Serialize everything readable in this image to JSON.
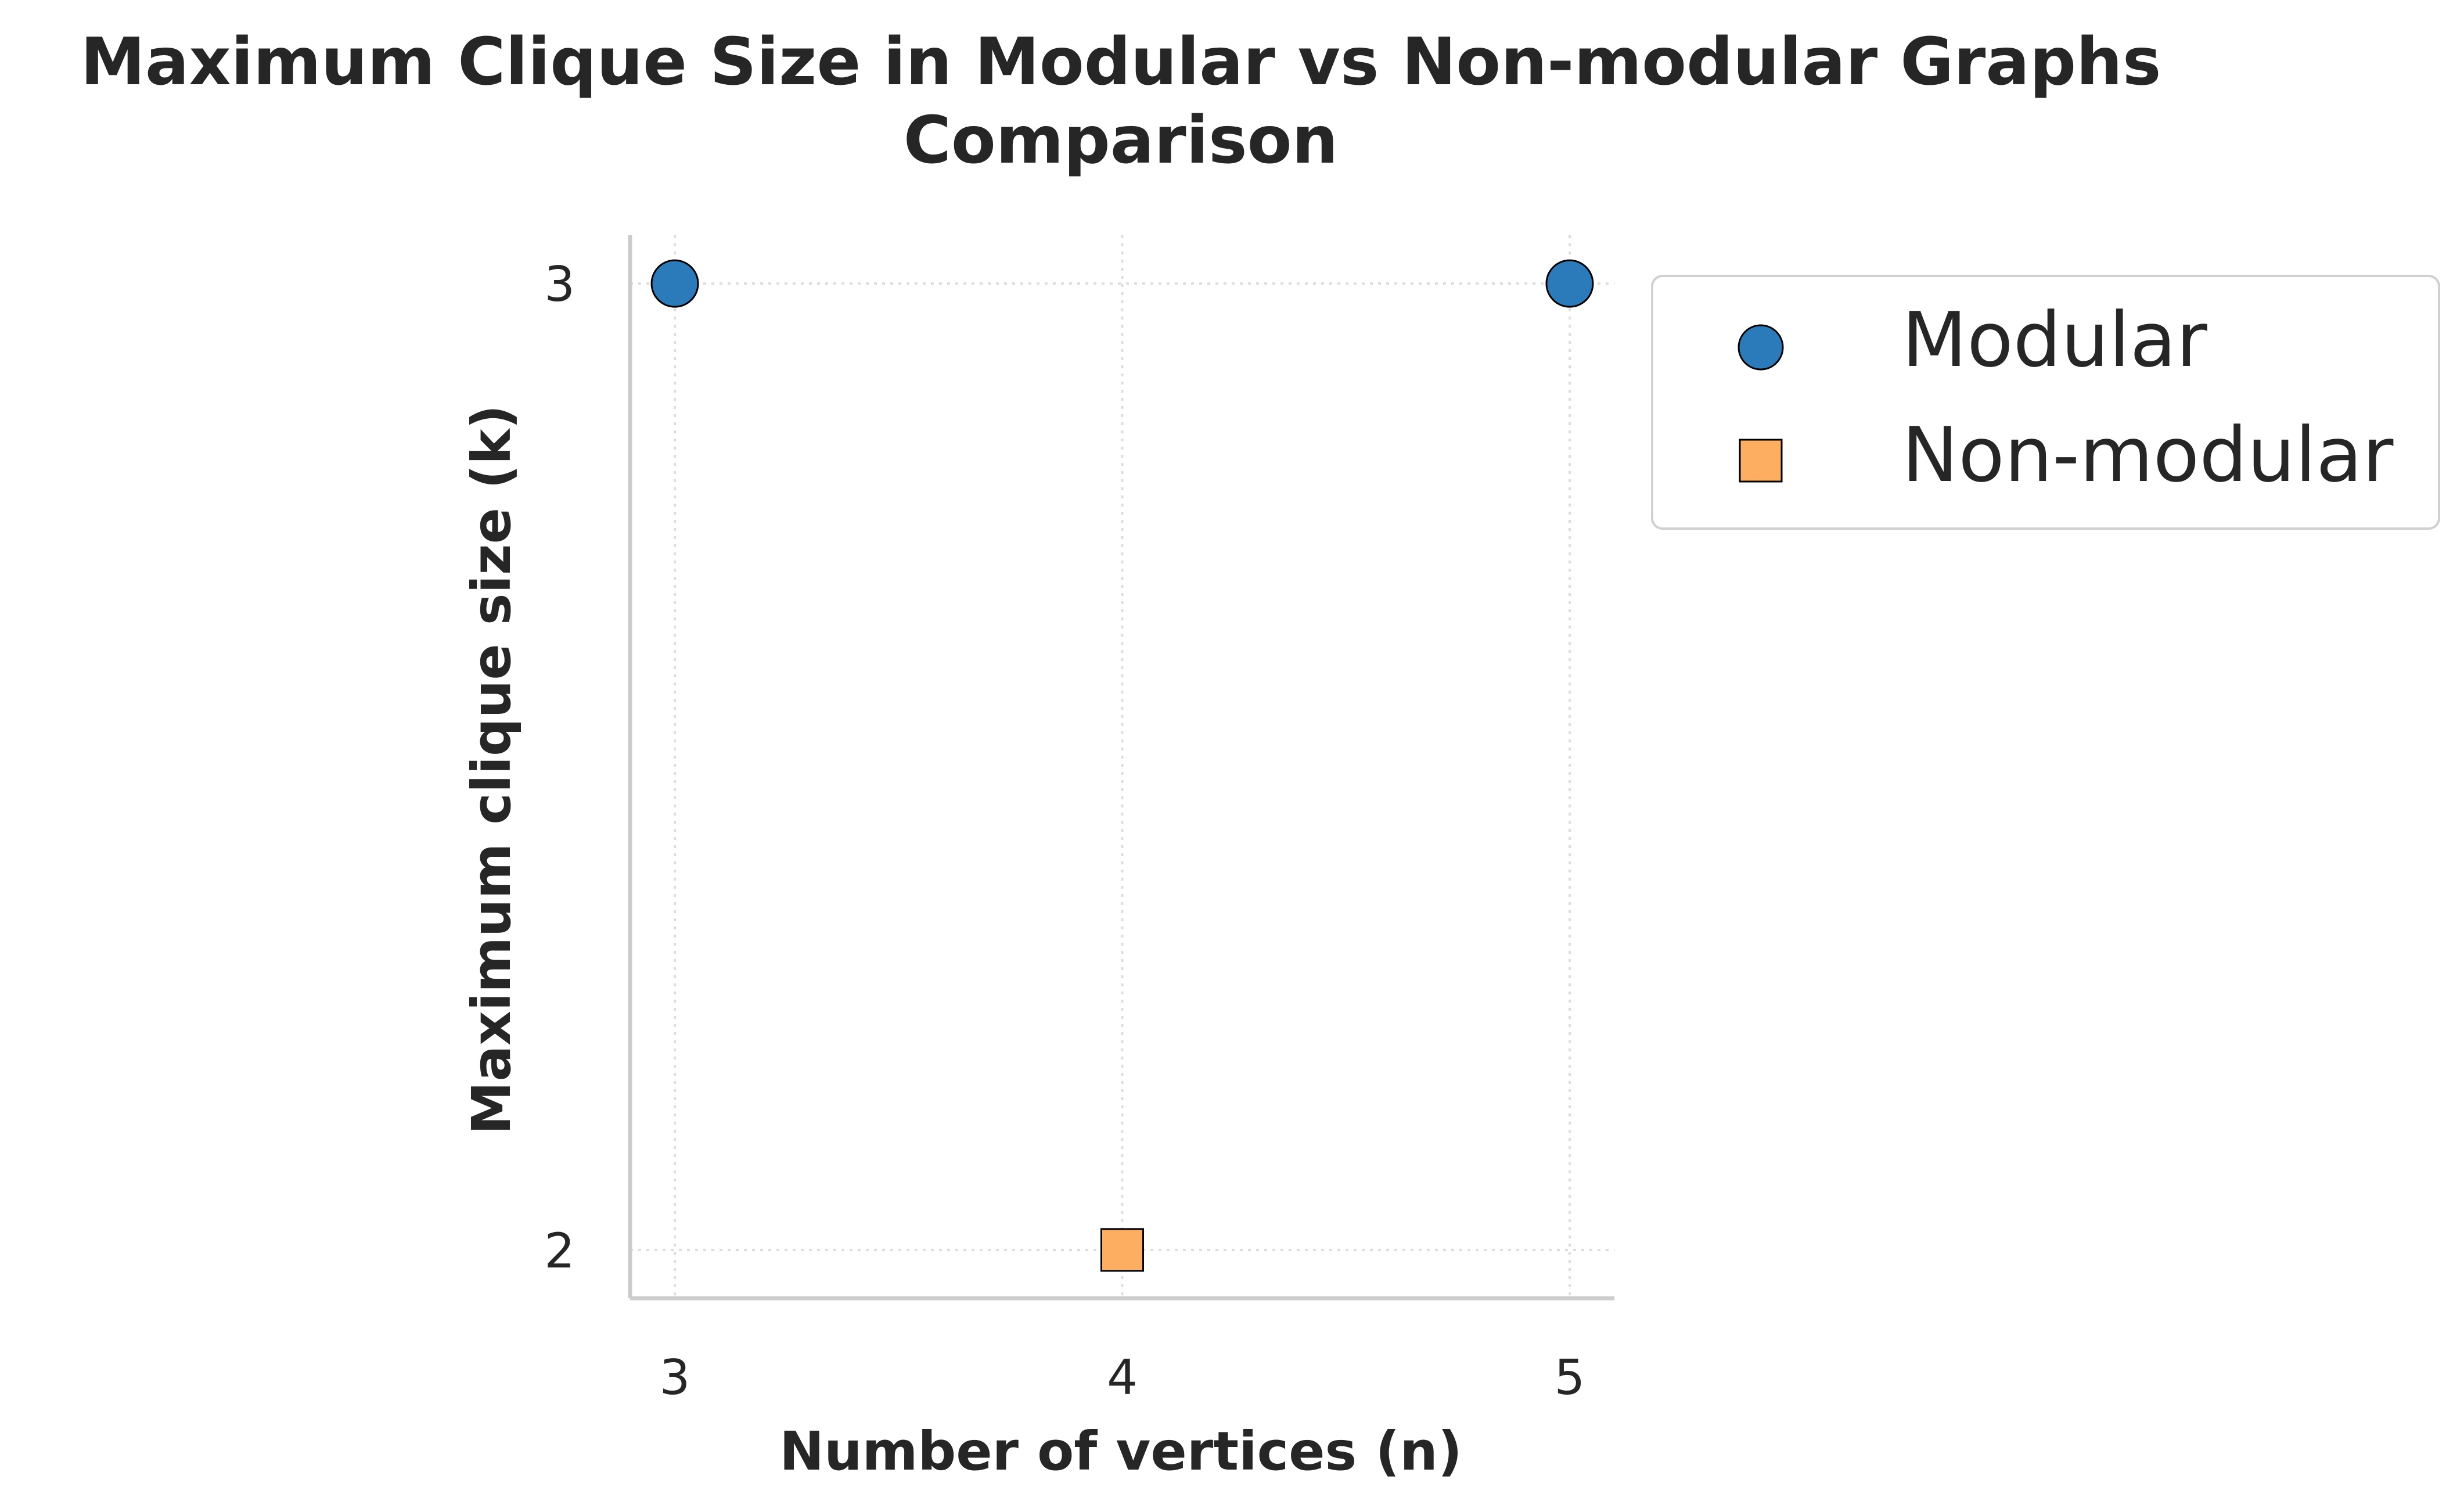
{
  "chart_data": {
    "type": "scatter",
    "title_lines": [
      "Maximum Clique Size in Modular vs Non-modular Graphs",
      "Comparison"
    ],
    "xlabel": "Number of vertices (n)",
    "ylabel": "Maximum clique size (k)",
    "xlim": [
      2.9,
      5.1
    ],
    "ylim": [
      1.95,
      3.05
    ],
    "xticks": [
      "3",
      "4",
      "5"
    ],
    "yticks": [
      "2",
      "3"
    ],
    "grid": true,
    "legend_position": "outside-right-top",
    "series": [
      {
        "name": "Modular",
        "marker": "circle",
        "color": "#2b7bba",
        "points": [
          {
            "x": 3,
            "y": 3
          },
          {
            "x": 5,
            "y": 3
          }
        ]
      },
      {
        "name": "Non-modular",
        "marker": "square",
        "color": "#fdae61",
        "points": [
          {
            "x": 4,
            "y": 2
          }
        ]
      }
    ]
  }
}
